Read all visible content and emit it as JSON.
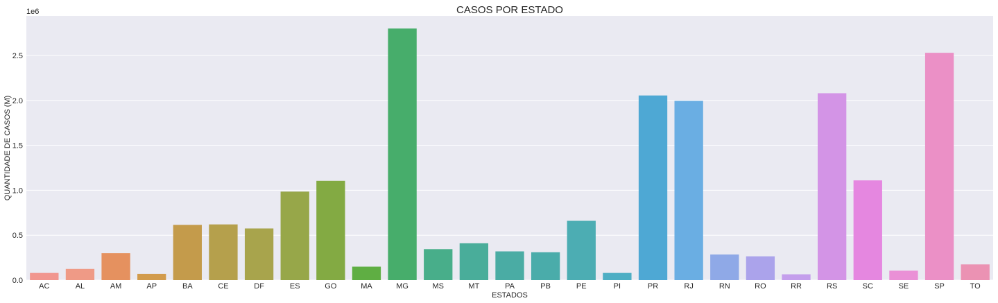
{
  "chart_data": {
    "type": "bar",
    "title": "CASOS POR ESTADO",
    "xlabel": "ESTADOS",
    "ylabel": "QUANTIDADE DE CASOS (M)",
    "offset_label": "1e6",
    "ylim": [
      0,
      2940000
    ],
    "yticks": [
      0,
      500000,
      1000000,
      1500000,
      2000000,
      2500000
    ],
    "ytick_labels": [
      "0.0",
      "0.5",
      "1.0",
      "1.5",
      "2.0",
      "2.5"
    ],
    "grid": true,
    "categories": [
      "AC",
      "AL",
      "AM",
      "AP",
      "BA",
      "CE",
      "DF",
      "ES",
      "GO",
      "MA",
      "MG",
      "MS",
      "MT",
      "PA",
      "PB",
      "PE",
      "PI",
      "PR",
      "RJ",
      "RN",
      "RO",
      "RR",
      "RS",
      "SC",
      "SE",
      "SP",
      "TO"
    ],
    "values": [
      80000,
      125000,
      300000,
      70000,
      615000,
      620000,
      575000,
      985000,
      1105000,
      150000,
      2800000,
      345000,
      410000,
      320000,
      310000,
      660000,
      80000,
      2055000,
      1995000,
      285000,
      265000,
      65000,
      2080000,
      1110000,
      105000,
      2530000,
      175000
    ],
    "colors": [
      "#f1968f",
      "#ef9a86",
      "#e5915f",
      "#d29b4c",
      "#c49b4b",
      "#b5a04c",
      "#a8a44c",
      "#97a749",
      "#83aa43",
      "#5fae43",
      "#47ad6b",
      "#48ae8a",
      "#49ad9a",
      "#4aaca4",
      "#4aacaa",
      "#4cadb3",
      "#4daec4",
      "#4ea8d4",
      "#6aaee3",
      "#8fa9e7",
      "#aba3eb",
      "#c49eec",
      "#d394e6",
      "#e587e0",
      "#ea90d6",
      "#eb90c6",
      "#eb92b3"
    ]
  }
}
